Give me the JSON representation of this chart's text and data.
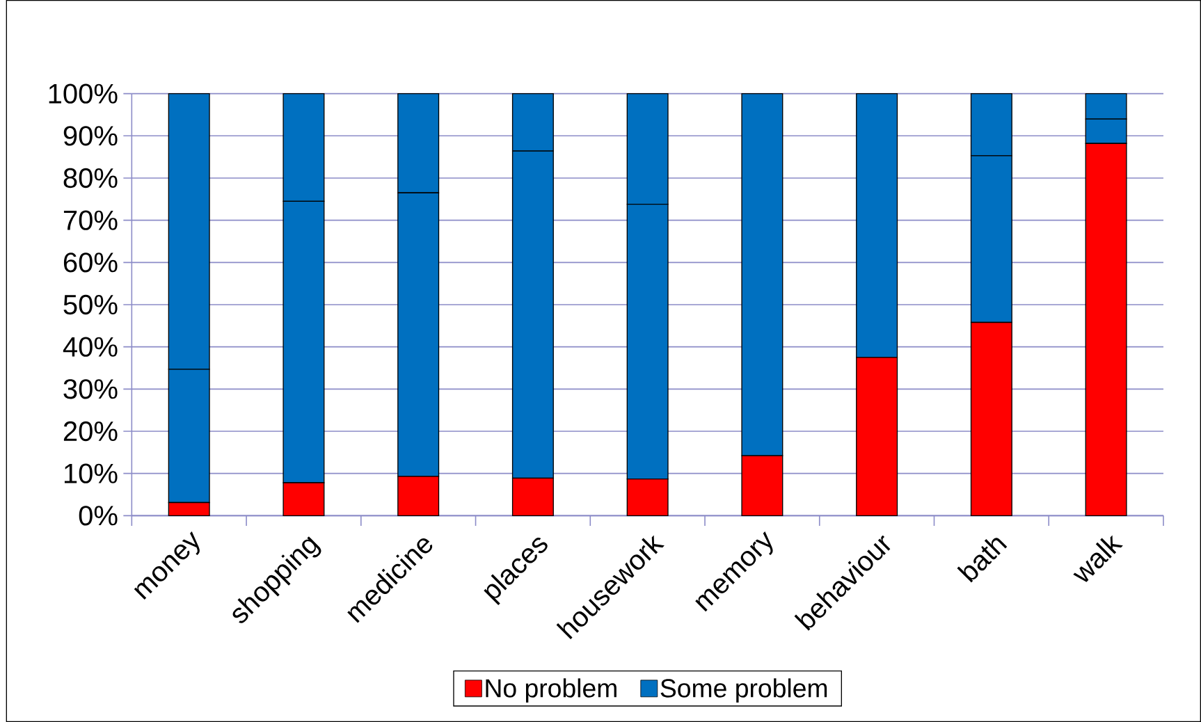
{
  "chart_data": {
    "type": "bar",
    "stacked": true,
    "categories": [
      "money",
      "shopping",
      "medicine",
      "places",
      "housework",
      "memory",
      "behaviour",
      "bath",
      "walk"
    ],
    "series": [
      {
        "name": "No problem",
        "color": "#ff0000",
        "values": [
          3.1,
          7.8,
          9.3,
          8.9,
          8.7,
          14.2,
          37.5,
          45.8,
          88.2
        ]
      },
      {
        "name": "Some problem",
        "color": "#0070c0",
        "values": [
          31.6,
          66.7,
          67.2,
          77.5,
          65.1,
          85.8,
          62.5,
          39.5,
          5.8
        ]
      },
      {
        "color": "#0070c0",
        "values": [
          65.3,
          25.5,
          23.5,
          13.6,
          26.2,
          0,
          0,
          14.7,
          6.0
        ]
      }
    ],
    "ylim": [
      0,
      100
    ],
    "yticks": [
      {
        "value": 0,
        "label": "0%"
      },
      {
        "value": 10,
        "label": "10%"
      },
      {
        "value": 20,
        "label": "20%"
      },
      {
        "value": 30,
        "label": "30%"
      },
      {
        "value": 40,
        "label": "40%"
      },
      {
        "value": 50,
        "label": "50%"
      },
      {
        "value": 60,
        "label": "60%"
      },
      {
        "value": 70,
        "label": "70%"
      },
      {
        "value": 80,
        "label": "80%"
      },
      {
        "value": 90,
        "label": "90%"
      },
      {
        "value": 100,
        "label": "100%"
      }
    ],
    "grid": "y",
    "legend": "bottom"
  }
}
